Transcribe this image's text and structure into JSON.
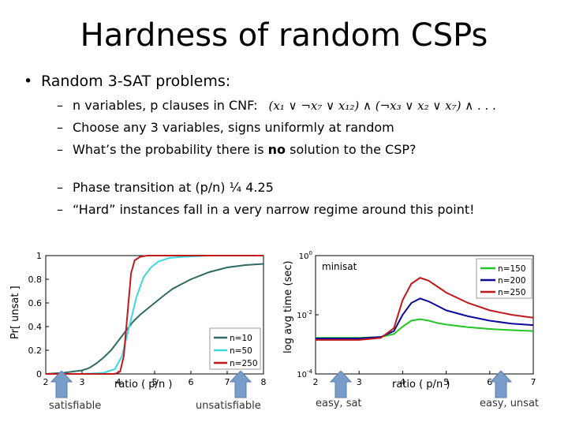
{
  "slide": {
    "title": "Hardness of random CSPs",
    "bullet": "Random 3-SAT problems:",
    "sub_items": [
      "n variables, p clauses in CNF:",
      "Choose any 3 variables, signs uniformly at random",
      "What’s the probability there is ",
      "Phase transition at  (p/n) ¼ 4.25",
      "“Hard” instances fall in a very narrow regime around this point!"
    ],
    "bold_word": "no",
    "after_bold": " solution to the CSP?",
    "formula": "(x₁ ∨ ¬x₇ ∨ x₁₂) ∧ (¬x₃ ∨ x₂ ∨ x₇) ∧ . . .",
    "captions": {
      "satisfiable": "satisfiable",
      "unsatisfiable": "unsatisfiable",
      "easy_sat": "easy, sat",
      "easy_unsat": "easy, unsat"
    },
    "colors": {
      "arrow": "#7a9cc8",
      "n10": "#2d6a63",
      "n50": "#3ed8e0",
      "n250": "#c0191a",
      "n150": "#23c423",
      "n200": "#0b0b9a"
    }
  },
  "chart_data": [
    {
      "type": "line",
      "ylabel": "Pr[ unsat ]",
      "xlabel": "ratio  ( p/n )",
      "xlim": [
        2,
        8
      ],
      "ylim": [
        0,
        1
      ],
      "xticks": [
        "2",
        "3",
        "4",
        "5",
        "6",
        "7",
        "8"
      ],
      "yticks": [
        "0",
        "0.2",
        "0.4",
        "0.6",
        "0.8",
        "1"
      ],
      "legend": "bottom-right",
      "series": [
        {
          "name": "n=10",
          "x": [
            2,
            2.5,
            3,
            3.2,
            3.4,
            3.6,
            3.8,
            4.0,
            4.2,
            4.4,
            4.6,
            4.8,
            5.0,
            5.2,
            5.5,
            6.0,
            6.5,
            7.0,
            7.5,
            8.0
          ],
          "y": [
            0.0,
            0.01,
            0.03,
            0.05,
            0.09,
            0.14,
            0.2,
            0.28,
            0.36,
            0.44,
            0.5,
            0.55,
            0.6,
            0.65,
            0.72,
            0.8,
            0.86,
            0.9,
            0.92,
            0.93
          ]
        },
        {
          "name": "n=50",
          "x": [
            2,
            3,
            3.6,
            3.9,
            4.1,
            4.3,
            4.5,
            4.7,
            4.9,
            5.1,
            5.4,
            5.8,
            6.5,
            8.0
          ],
          "y": [
            0.0,
            0.0,
            0.01,
            0.04,
            0.15,
            0.4,
            0.65,
            0.82,
            0.9,
            0.95,
            0.98,
            0.99,
            1.0,
            1.0
          ]
        },
        {
          "name": "n=250",
          "x": [
            2,
            3,
            3.9,
            4.05,
            4.15,
            4.25,
            4.35,
            4.45,
            4.6,
            4.8,
            5.2,
            6.0,
            8.0
          ],
          "y": [
            0.0,
            0.0,
            0.0,
            0.02,
            0.15,
            0.5,
            0.85,
            0.96,
            0.99,
            1.0,
            1.0,
            1.0,
            1.0
          ]
        }
      ]
    },
    {
      "type": "line",
      "title": "minisat",
      "ylabel": "log avg time (sec)",
      "xlabel": "ratio  ( p/n )",
      "xlim": [
        2,
        7
      ],
      "ylim": [
        -4,
        0
      ],
      "scale": "log",
      "xticks": [
        "2",
        "3",
        "4",
        "5",
        "6",
        "7"
      ],
      "legend": "top-right",
      "series": [
        {
          "name": "n=150",
          "x": [
            2.0,
            3.0,
            3.5,
            3.8,
            4.0,
            4.2,
            4.4,
            4.6,
            4.8,
            5.0,
            5.5,
            6.0,
            6.5,
            7.0
          ],
          "y": [
            -2.78,
            -2.78,
            -2.75,
            -2.65,
            -2.4,
            -2.2,
            -2.15,
            -2.2,
            -2.28,
            -2.33,
            -2.42,
            -2.48,
            -2.52,
            -2.55
          ]
        },
        {
          "name": "n=200",
          "x": [
            2.0,
            3.0,
            3.5,
            3.8,
            4.0,
            4.2,
            4.4,
            4.6,
            4.8,
            5.0,
            5.5,
            6.0,
            6.5,
            7.0
          ],
          "y": [
            -2.8,
            -2.8,
            -2.75,
            -2.55,
            -2.0,
            -1.6,
            -1.45,
            -1.55,
            -1.7,
            -1.85,
            -2.05,
            -2.2,
            -2.3,
            -2.35
          ]
        },
        {
          "name": "n=250",
          "x": [
            2.0,
            3.0,
            3.5,
            3.8,
            4.0,
            4.2,
            4.4,
            4.6,
            4.8,
            5.0,
            5.5,
            6.0,
            6.5,
            7.0
          ],
          "y": [
            -2.85,
            -2.85,
            -2.78,
            -2.45,
            -1.5,
            -0.95,
            -0.75,
            -0.85,
            -1.05,
            -1.25,
            -1.6,
            -1.85,
            -2.0,
            -2.1
          ]
        }
      ]
    }
  ]
}
